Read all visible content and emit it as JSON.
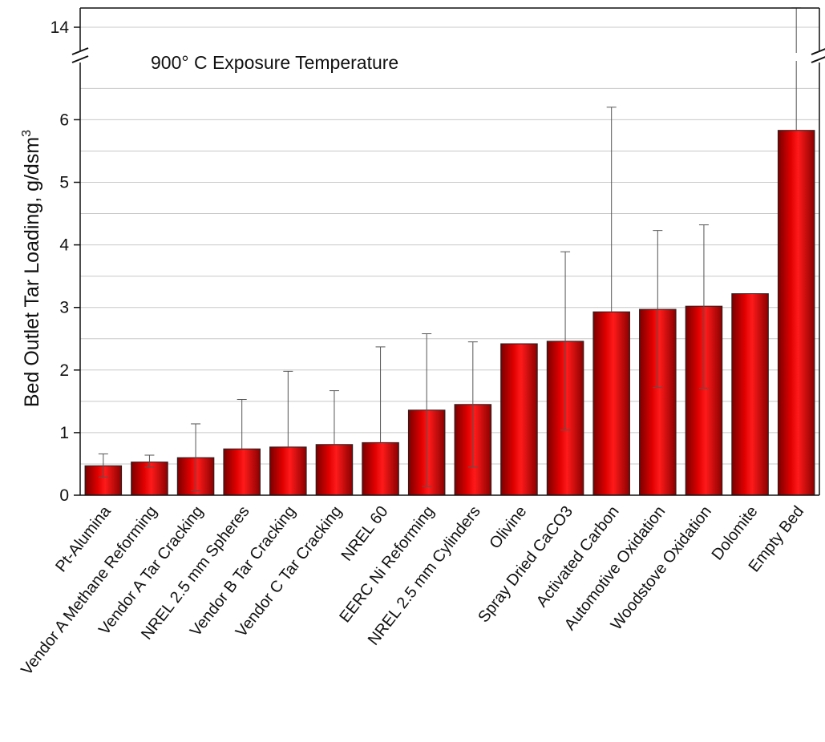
{
  "chart_data": {
    "type": "bar",
    "annotation": "900° C Exposure Temperature",
    "ylabel": "Bed Outlet Tar Loading, g/dsm",
    "ylabel_superscript": "3",
    "ylim_lower": [
      0,
      7
    ],
    "ylim_upper_tick": 14,
    "axis_break": true,
    "y_ticks": [
      0,
      1,
      2,
      3,
      4,
      5,
      6,
      14
    ],
    "grid": true,
    "bar_color": "#e00000",
    "categories": [
      "Pt-Alumina",
      "Vendor A Methane Reforming",
      "Vendor A Tar Cracking",
      "NREL 2.5 mm Spheres",
      "Vendor B Tar Cracking",
      "Vendor C Tar Cracking",
      "NREL 60",
      "EERC Ni Reforming",
      "NREL 2.5 mm Cylinders",
      "Olivine",
      "Spray Dried CaCO3",
      "Activated Carbon",
      "Automotive Oxidation",
      "Woodstove Oxidation",
      "Dolomite",
      "Empty Bed"
    ],
    "values": [
      0.47,
      0.53,
      0.6,
      0.74,
      0.77,
      0.81,
      0.84,
      1.36,
      1.45,
      2.42,
      2.46,
      2.93,
      2.97,
      3.02,
      3.22,
      5.83
    ],
    "error_low": [
      0.29,
      0.45,
      0.07,
      null,
      null,
      null,
      null,
      0.14,
      0.45,
      null,
      1.04,
      null,
      1.72,
      1.71,
      null,
      null
    ],
    "error_high": [
      0.66,
      0.64,
      1.14,
      1.53,
      1.98,
      1.67,
      2.37,
      2.58,
      2.45,
      null,
      3.89,
      6.2,
      4.23,
      4.32,
      null,
      14.5
    ]
  }
}
